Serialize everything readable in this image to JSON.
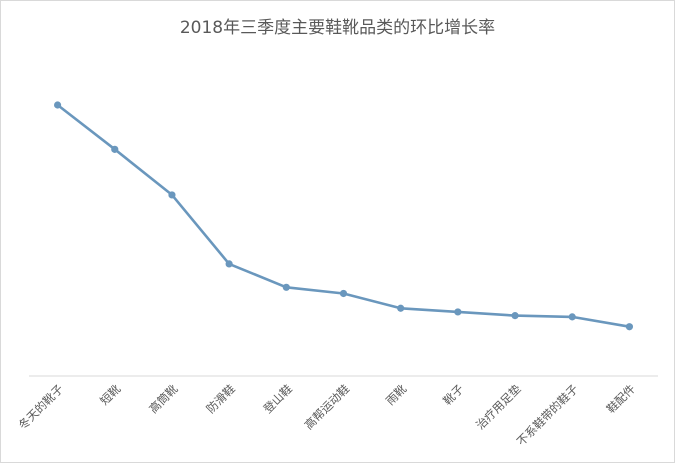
{
  "chart_data": {
    "type": "line",
    "title": "2018年三季度主要鞋靴品类的环比增长率",
    "xlabel": "",
    "ylabel": "",
    "categories": [
      "冬天的靴子",
      "短靴",
      "高筒靴",
      "防滑鞋",
      "登山鞋",
      "高帮运动鞋",
      "雨靴",
      "靴子",
      "治疗用足垫",
      "不系鞋带的鞋子",
      "鞋配件"
    ],
    "series": [
      {
        "values": [
          100,
          82,
          63.5,
          35.5,
          26,
          23.5,
          17.5,
          16,
          14.5,
          14,
          10
        ]
      }
    ],
    "ylim": [
      -10,
      100
    ],
    "grid": false,
    "legend": "none",
    "line_color": "#6a97bd"
  }
}
